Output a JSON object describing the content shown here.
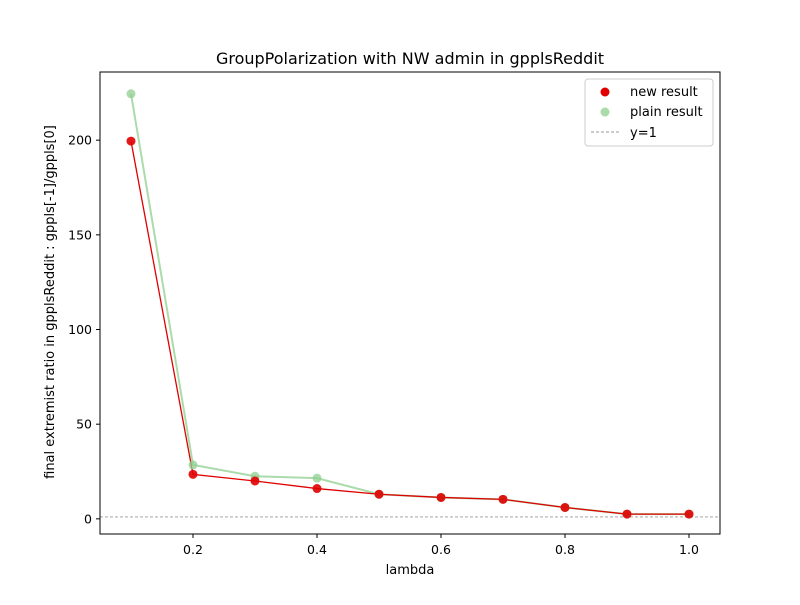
{
  "chart_data": {
    "type": "line",
    "title": "GroupPolarization with NW admin in gpplsReddit",
    "xlabel": "lambda",
    "ylabel": "final extremist ratio in  gpplsReddit : gppls[-1]/gppls[0]",
    "xlim": [
      0.05,
      1.05
    ],
    "ylim": [
      -8,
      236
    ],
    "xticks": [
      0.2,
      0.4,
      0.6,
      0.8,
      1.0
    ],
    "xtick_labels": [
      "0.2",
      "0.4",
      "0.6",
      "0.8",
      "1.0"
    ],
    "yticks": [
      0,
      50,
      100,
      150,
      200
    ],
    "ytick_labels": [
      "0",
      "50",
      "100",
      "150",
      "200"
    ],
    "grid": false,
    "legend_position": "top-right",
    "x": [
      0.1,
      0.2,
      0.3,
      0.4,
      0.5,
      0.6,
      0.7,
      0.8,
      0.9,
      1.0
    ],
    "series": [
      {
        "name": "new result",
        "color": "#e00000",
        "values": [
          199.5,
          23.5,
          20.0,
          16.0,
          13.0,
          11.3,
          10.3,
          6.0,
          2.5,
          2.5
        ]
      },
      {
        "name": "plain result",
        "color": "#8fcf8f",
        "values": [
          224.5,
          28.5,
          22.5,
          21.5,
          13.0,
          11.3,
          10.3,
          6.0,
          2.5,
          2.5
        ]
      }
    ],
    "reference_line": {
      "name": "y=1",
      "y": 1,
      "color": "#999999",
      "style": "dashed"
    }
  }
}
